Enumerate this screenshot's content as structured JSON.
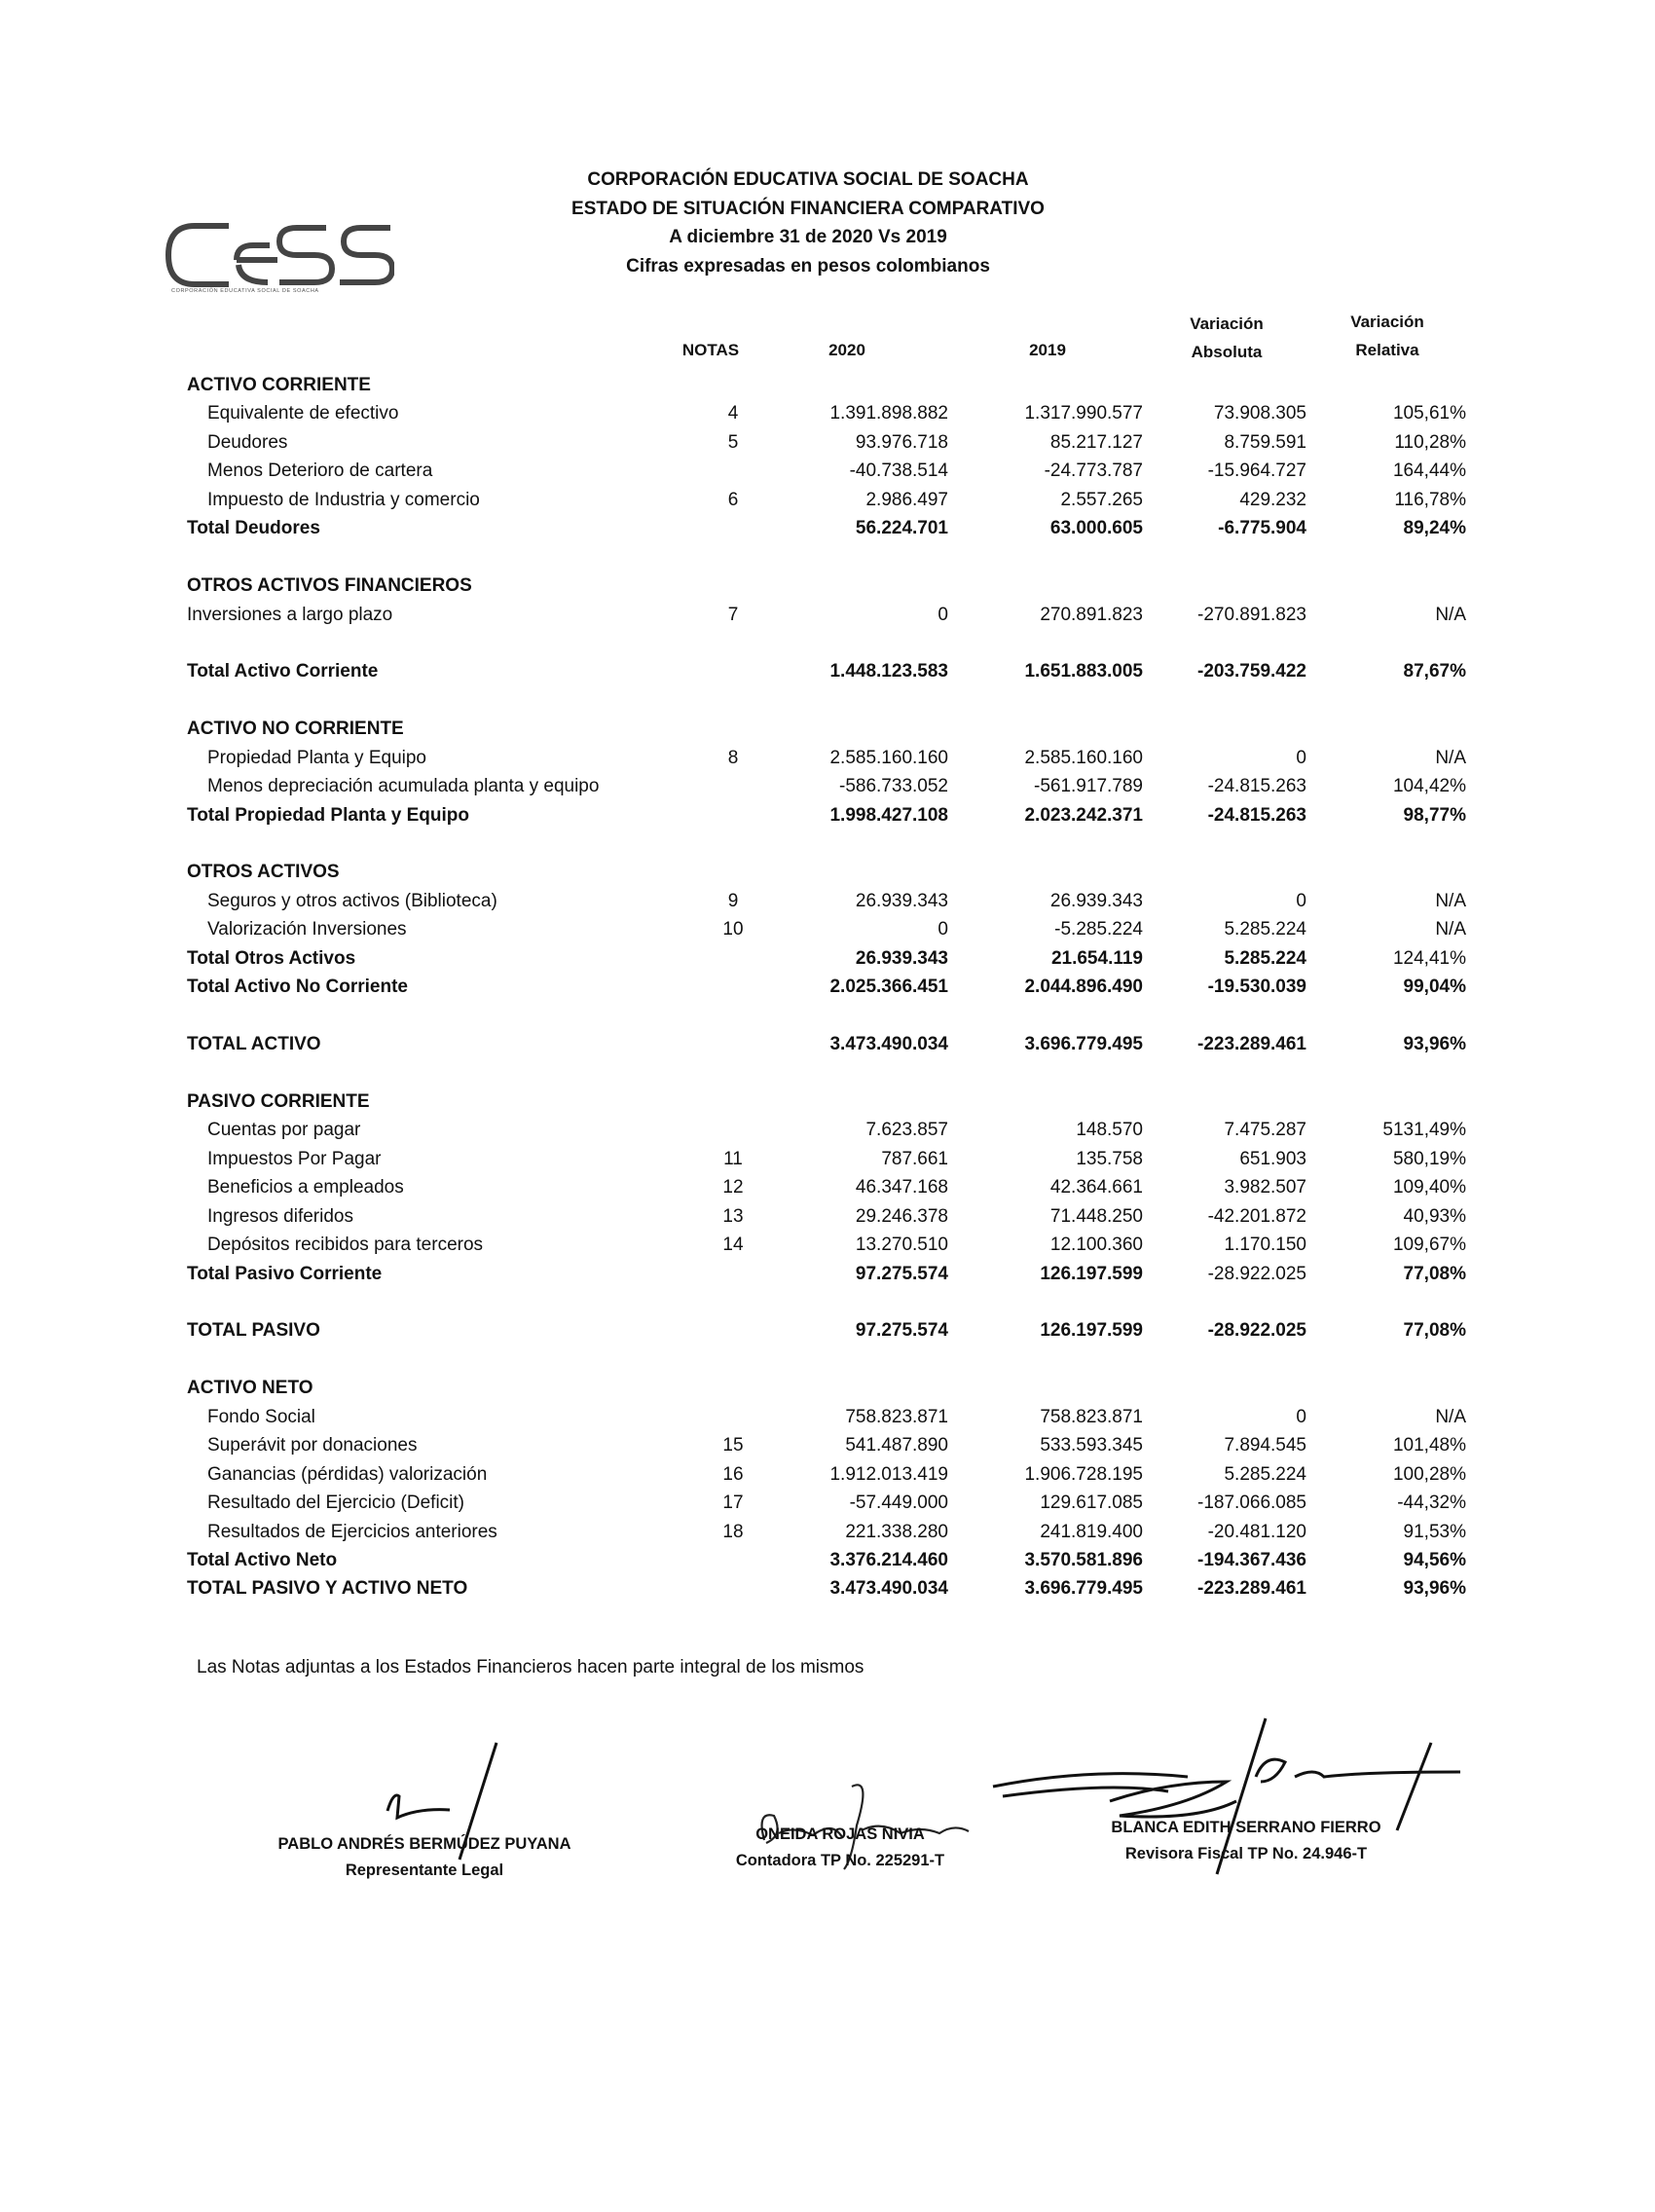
{
  "header": {
    "lines": [
      "CORPORACIÓN EDUCATIVA SOCIAL DE SOACHA",
      "ESTADO DE SITUACIÓN FINANCIERA COMPARATIVO",
      "A diciembre 31 de 2020 Vs 2019",
      "Cifras expresadas en pesos colombianos"
    ],
    "logo_text": "CeSS",
    "logo_caption": "CORPORACIÓN EDUCATIVA SOCIAL DE SOACHA"
  },
  "columns": {
    "notas": "NOTAS",
    "y2020": "2020",
    "y2019": "2019",
    "abs_line1": "Variación",
    "abs_line2": "Absoluta",
    "rel_line1": "Variación",
    "rel_line2": "Relativa"
  },
  "groups": [
    {
      "rows": [
        {
          "kind": "heading",
          "label": "ACTIVO CORRIENTE"
        },
        {
          "kind": "sub",
          "label": "Equivalente de efectivo",
          "nota": "4",
          "v2020": "1.391.898.882",
          "v2019": "1.317.990.577",
          "abs": "73.908.305",
          "rel": "105,61%"
        },
        {
          "kind": "sub",
          "label": "Deudores",
          "nota": "5",
          "v2020": "93.976.718",
          "v2019": "85.217.127",
          "abs": "8.759.591",
          "rel": "110,28%"
        },
        {
          "kind": "sub",
          "label": "Menos Deterioro de cartera",
          "nota": "",
          "v2020": "-40.738.514",
          "v2019": "-24.773.787",
          "abs": "-15.964.727",
          "rel": "164,44%"
        },
        {
          "kind": "sub",
          "label": "Impuesto de Industria y comercio",
          "nota": "6",
          "v2020": "2.986.497",
          "v2019": "2.557.265",
          "abs": "429.232",
          "rel": "116,78%"
        },
        {
          "kind": "total",
          "label": "Total  Deudores",
          "nota": "",
          "v2020": "56.224.701",
          "v2019": "63.000.605",
          "abs": "-6.775.904",
          "rel": "89,24%"
        }
      ]
    },
    {
      "rows": [
        {
          "kind": "heading",
          "label": "OTROS ACTIVOS FINANCIEROS"
        },
        {
          "kind": "item",
          "label": "Inversiones a largo plazo",
          "nota": "7",
          "v2020": "0",
          "v2019": "270.891.823",
          "abs": "-270.891.823",
          "rel": "N/A"
        }
      ]
    },
    {
      "rows": [
        {
          "kind": "total",
          "label": "Total Activo Corriente",
          "nota": "",
          "v2020": "1.448.123.583",
          "v2019": "1.651.883.005",
          "abs": "-203.759.422",
          "rel": "87,67%"
        }
      ]
    },
    {
      "rows": [
        {
          "kind": "heading",
          "label": "ACTIVO NO CORRIENTE"
        },
        {
          "kind": "sub",
          "label": "Propiedad Planta y Equipo",
          "nota": "8",
          "v2020": "2.585.160.160",
          "v2019": "2.585.160.160",
          "abs": "0",
          "rel": "N/A"
        },
        {
          "kind": "sub",
          "label": "Menos  depreciación acumulada planta y equipo",
          "nota": "",
          "v2020": "-586.733.052",
          "v2019": "-561.917.789",
          "abs": "-24.815.263",
          "rel": "104,42%"
        },
        {
          "kind": "total",
          "label": "Total Propiedad Planta y Equipo",
          "nota": "",
          "v2020": "1.998.427.108",
          "v2019": "2.023.242.371",
          "abs": "-24.815.263",
          "rel": "98,77%"
        }
      ]
    },
    {
      "rows": [
        {
          "kind": "heading",
          "label": "OTROS ACTIVOS"
        },
        {
          "kind": "sub",
          "label": "Seguros y otros activos (Biblioteca)",
          "nota": "9",
          "v2020": "26.939.343",
          "v2019": "26.939.343",
          "abs": "0",
          "rel": "N/A"
        },
        {
          "kind": "sub",
          "label": "Valorización Inversiones",
          "nota": "10",
          "v2020": "0",
          "v2019": "-5.285.224",
          "abs": "5.285.224",
          "rel": "N/A"
        },
        {
          "kind": "total",
          "label": "Total Otros Activos",
          "nota": "",
          "v2020": "26.939.343",
          "v2019": "21.654.119",
          "abs": "5.285.224",
          "rel": "124,41%",
          "rel_normal": true
        },
        {
          "kind": "total",
          "label": "Total Activo No Corriente",
          "nota": "",
          "v2020": "2.025.366.451",
          "v2019": "2.044.896.490",
          "abs": "-19.530.039",
          "rel": "99,04%"
        }
      ]
    },
    {
      "rows": [
        {
          "kind": "total",
          "label": "TOTAL ACTIVO",
          "nota": "",
          "v2020": "3.473.490.034",
          "v2019": "3.696.779.495",
          "abs": "-223.289.461",
          "rel": "93,96%"
        }
      ]
    },
    {
      "rows": [
        {
          "kind": "heading",
          "label": "PASIVO CORRIENTE"
        },
        {
          "kind": "sub",
          "label": "Cuentas por pagar",
          "nota": "",
          "v2020": "7.623.857",
          "v2019": "148.570",
          "abs": "7.475.287",
          "rel": "5131,49%"
        },
        {
          "kind": "sub",
          "label": "Impuestos Por Pagar",
          "nota": "11",
          "v2020": "787.661",
          "v2019": "135.758",
          "abs": "651.903",
          "rel": "580,19%"
        },
        {
          "kind": "sub",
          "label": "Beneficios a empleados",
          "nota": "12",
          "v2020": "46.347.168",
          "v2019": "42.364.661",
          "abs": "3.982.507",
          "rel": "109,40%"
        },
        {
          "kind": "sub",
          "label": "Ingresos diferidos",
          "nota": "13",
          "v2020": "29.246.378",
          "v2019": "71.448.250",
          "abs": "-42.201.872",
          "rel": "40,93%"
        },
        {
          "kind": "sub",
          "label": "Depósitos recibidos para terceros",
          "nota": "14",
          "v2020": "13.270.510",
          "v2019": "12.100.360",
          "abs": "1.170.150",
          "rel": "109,67%"
        },
        {
          "kind": "total",
          "label": "Total Pasivo Corriente",
          "nota": "",
          "v2020": "97.275.574",
          "v2019": "126.197.599",
          "abs": "-28.922.025",
          "rel": "77,08%",
          "abs_normal": true
        }
      ]
    },
    {
      "rows": [
        {
          "kind": "total",
          "label": "TOTAL PASIVO",
          "nota": "",
          "v2020": "97.275.574",
          "v2019": "126.197.599",
          "abs": "-28.922.025",
          "rel": "77,08%"
        }
      ]
    },
    {
      "rows": [
        {
          "kind": "heading",
          "label": "ACTIVO NETO"
        },
        {
          "kind": "sub",
          "label": "Fondo Social",
          "nota": "",
          "v2020": "758.823.871",
          "v2019": "758.823.871",
          "abs": "0",
          "rel": "N/A"
        },
        {
          "kind": "sub",
          "label": "Superávit por donaciones",
          "nota": "15",
          "v2020": "541.487.890",
          "v2019": "533.593.345",
          "abs": "7.894.545",
          "rel": "101,48%"
        },
        {
          "kind": "sub",
          "label": "Ganancias (pérdidas) valorización",
          "nota": "16",
          "v2020": "1.912.013.419",
          "v2019": "1.906.728.195",
          "abs": "5.285.224",
          "rel": "100,28%"
        },
        {
          "kind": "sub",
          "label": "Resultado del Ejercicio (Deficit)",
          "nota": "17",
          "v2020": "-57.449.000",
          "v2019": "129.617.085",
          "abs": "-187.066.085",
          "rel": "-44,32%"
        },
        {
          "kind": "sub",
          "label": "Resultados de Ejercicios anteriores",
          "nota": "18",
          "v2020": "221.338.280",
          "v2019": "241.819.400",
          "abs": "-20.481.120",
          "rel": "91,53%"
        },
        {
          "kind": "total",
          "label": "Total Activo Neto",
          "nota": "",
          "v2020": "3.376.214.460",
          "v2019": "3.570.581.896",
          "abs": "-194.367.436",
          "rel": "94,56%"
        },
        {
          "kind": "total",
          "label": "TOTAL PASIVO Y ACTIVO NETO",
          "nota": "",
          "v2020": "3.473.490.034",
          "v2019": "3.696.779.495",
          "abs": "-223.289.461",
          "rel": "93,96%"
        }
      ]
    }
  ],
  "footnote": "Las Notas adjuntas a los Estados Financieros hacen parte integral de los  mismos",
  "signatures": [
    {
      "name": "PABLO ANDRÉS BERMÚDEZ PUYANA",
      "role": "Representante Legal",
      "handwriting": "P"
    },
    {
      "name": "ONEIDA ROJAS NIVIA",
      "role": "Contadora TP No. 225291-T",
      "handwriting": "Oneida Rojas Nivia"
    },
    {
      "name": "BLANCA EDITH SERRANO FIERRO",
      "role": "Revisora Fiscal  TP No. 24.946-T",
      "handwriting": "B"
    }
  ]
}
